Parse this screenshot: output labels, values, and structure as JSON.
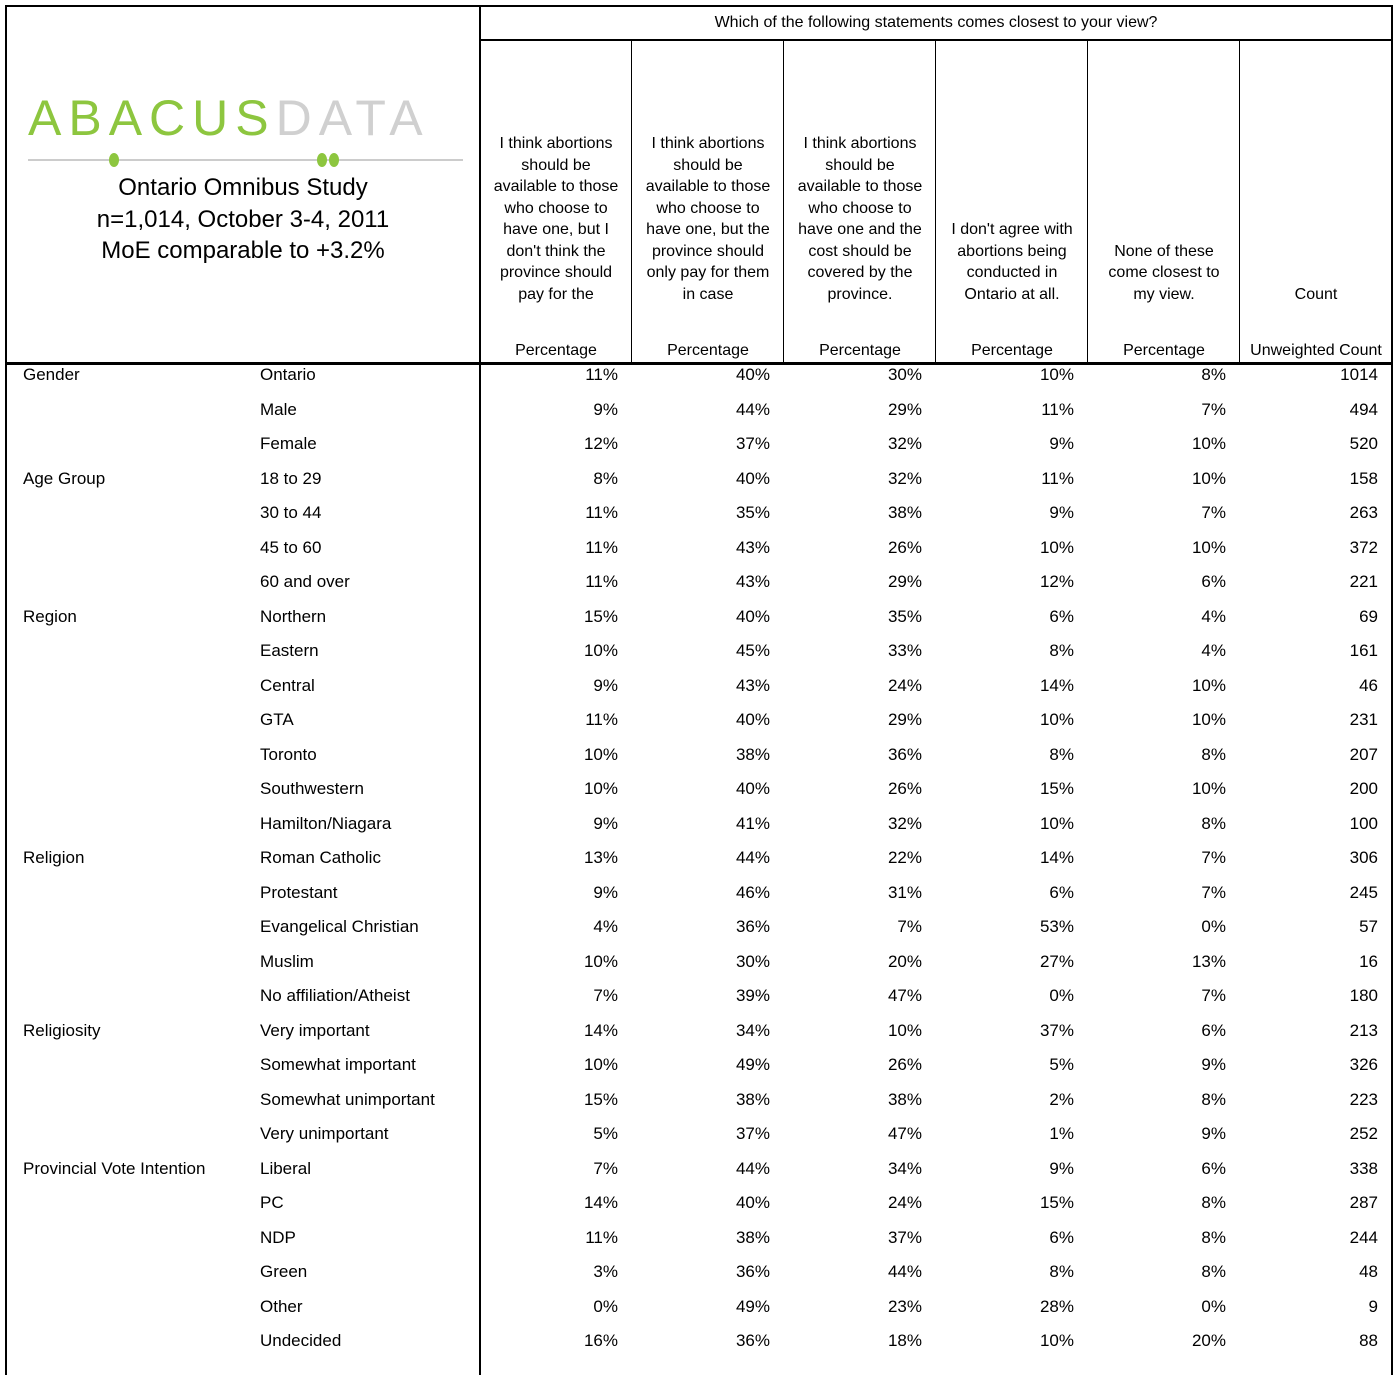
{
  "logo": {
    "word1": "ABACUS",
    "word2": "DATA"
  },
  "study": [
    "Ontario Omnibus Study",
    "n=1,014, October 3-4, 2011",
    "MoE comparable to +3.2%"
  ],
  "question": "Which of the following statements comes closest to your view?",
  "columns": [
    {
      "header": "I think abortions should be available to those who choose to have one, but I don't think the province should pay for the",
      "subheader": "Percentage"
    },
    {
      "header": "I think abortions should be available to those who choose to have one, but the province should only pay for them in case",
      "subheader": "Percentage"
    },
    {
      "header": "I think abortions should be available to those who choose to have one and the cost should be covered by the province.",
      "subheader": "Percentage"
    },
    {
      "header": "I don't agree with abortions being conducted in Ontario at all.",
      "subheader": "Percentage"
    },
    {
      "header": "None of these come closest to my view.",
      "subheader": "Percentage"
    },
    {
      "header": "Count",
      "subheader": "Unweighted Count"
    }
  ],
  "rows": [
    {
      "group": "Gender",
      "label": "Ontario",
      "values": [
        "11%",
        "40%",
        "30%",
        "10%",
        "8%",
        "1014"
      ]
    },
    {
      "label": "Male",
      "values": [
        "9%",
        "44%",
        "29%",
        "11%",
        "7%",
        "494"
      ]
    },
    {
      "label": "Female",
      "values": [
        "12%",
        "37%",
        "32%",
        "9%",
        "10%",
        "520"
      ]
    },
    {
      "group": "Age Group",
      "label": "18 to 29",
      "values": [
        "8%",
        "40%",
        "32%",
        "11%",
        "10%",
        "158"
      ]
    },
    {
      "label": "30 to 44",
      "values": [
        "11%",
        "35%",
        "38%",
        "9%",
        "7%",
        "263"
      ]
    },
    {
      "label": "45 to 60",
      "values": [
        "11%",
        "43%",
        "26%",
        "10%",
        "10%",
        "372"
      ]
    },
    {
      "label": "60 and over",
      "values": [
        "11%",
        "43%",
        "29%",
        "12%",
        "6%",
        "221"
      ]
    },
    {
      "group": "Region",
      "label": "Northern",
      "values": [
        "15%",
        "40%",
        "35%",
        "6%",
        "4%",
        "69"
      ]
    },
    {
      "label": "Eastern",
      "values": [
        "10%",
        "45%",
        "33%",
        "8%",
        "4%",
        "161"
      ]
    },
    {
      "label": "Central",
      "values": [
        "9%",
        "43%",
        "24%",
        "14%",
        "10%",
        "46"
      ]
    },
    {
      "label": "GTA",
      "values": [
        "11%",
        "40%",
        "29%",
        "10%",
        "10%",
        "231"
      ]
    },
    {
      "label": "Toronto",
      "values": [
        "10%",
        "38%",
        "36%",
        "8%",
        "8%",
        "207"
      ]
    },
    {
      "label": "Southwestern",
      "values": [
        "10%",
        "40%",
        "26%",
        "15%",
        "10%",
        "200"
      ]
    },
    {
      "label": "Hamilton/Niagara",
      "values": [
        "9%",
        "41%",
        "32%",
        "10%",
        "8%",
        "100"
      ]
    },
    {
      "group": "Religion",
      "label": "Roman Catholic",
      "values": [
        "13%",
        "44%",
        "22%",
        "14%",
        "7%",
        "306"
      ]
    },
    {
      "label": "Protestant",
      "values": [
        "9%",
        "46%",
        "31%",
        "6%",
        "7%",
        "245"
      ]
    },
    {
      "label": "Evangelical Christian",
      "values": [
        "4%",
        "36%",
        "7%",
        "53%",
        "0%",
        "57"
      ]
    },
    {
      "label": "Muslim",
      "values": [
        "10%",
        "30%",
        "20%",
        "27%",
        "13%",
        "16"
      ]
    },
    {
      "label": "No affiliation/Atheist",
      "values": [
        "7%",
        "39%",
        "47%",
        "0%",
        "7%",
        "180"
      ]
    },
    {
      "group": "Religiosity",
      "label": "Very important",
      "values": [
        "14%",
        "34%",
        "10%",
        "37%",
        "6%",
        "213"
      ]
    },
    {
      "label": "Somewhat important",
      "values": [
        "10%",
        "49%",
        "26%",
        "5%",
        "9%",
        "326"
      ]
    },
    {
      "label": "Somewhat unimportant",
      "values": [
        "15%",
        "38%",
        "38%",
        "2%",
        "8%",
        "223"
      ]
    },
    {
      "label": "Very unimportant",
      "values": [
        "5%",
        "37%",
        "47%",
        "1%",
        "9%",
        "252"
      ]
    },
    {
      "group": "Provincial Vote Intention",
      "label": "Liberal",
      "values": [
        "7%",
        "44%",
        "34%",
        "9%",
        "6%",
        "338"
      ]
    },
    {
      "label": "PC",
      "values": [
        "14%",
        "40%",
        "24%",
        "15%",
        "8%",
        "287"
      ]
    },
    {
      "label": "NDP",
      "values": [
        "11%",
        "38%",
        "37%",
        "6%",
        "8%",
        "244"
      ]
    },
    {
      "label": "Green",
      "values": [
        "3%",
        "36%",
        "44%",
        "8%",
        "8%",
        "48"
      ]
    },
    {
      "label": "Other",
      "values": [
        "0%",
        "49%",
        "23%",
        "28%",
        "0%",
        "9"
      ]
    },
    {
      "label": "Undecided",
      "values": [
        "16%",
        "36%",
        "18%",
        "10%",
        "20%",
        "88"
      ]
    }
  ]
}
